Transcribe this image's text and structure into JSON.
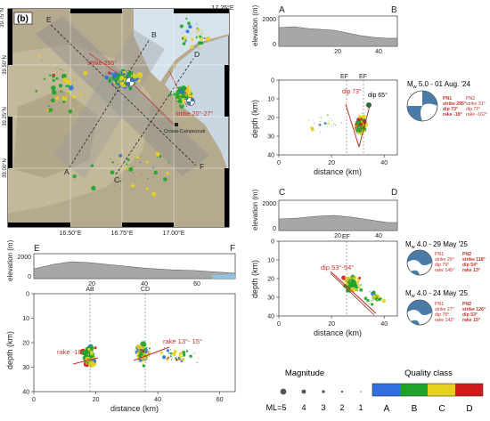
{
  "map": {
    "panel_label": "(b)",
    "lat_ticks": [
      "39.75°N",
      "39.50°N",
      "39.25°N",
      "39.00°N"
    ],
    "lon_ticks": [
      "16.50°E",
      "16.75°E",
      "17.00°E",
      "17.25°E"
    ],
    "profile_letters": [
      "E",
      "B",
      "D",
      "A",
      "C",
      "F"
    ],
    "strike_label_1": "strike 295°",
    "strike_label_2": "strike 20°-27°",
    "town_label": "Crosia-Calopezzati"
  },
  "profile_ab": {
    "left_letter": "A",
    "right_letter": "B",
    "elev_ylabel": "elevation (m)",
    "elev_tick": "2000",
    "elev_tick0": "0",
    "depth_ylabel": "depth (km)",
    "xlabel": "distance (km)",
    "x_ticks": [
      "0",
      "20",
      "40"
    ],
    "depth_ticks": [
      "0",
      "10",
      "20",
      "30",
      "40"
    ],
    "elev_x_ticks": [
      "20",
      "40"
    ],
    "fault_labels": [
      "EF",
      "EF"
    ],
    "dip_labels": [
      "dip 73°",
      "dip 65°"
    ]
  },
  "profile_cd": {
    "left_letter": "C",
    "right_letter": "D",
    "elev_ylabel": "elevation (m)",
    "elev_tick": "2000",
    "elev_tick0": "0",
    "depth_ylabel": "depth (km)",
    "xlabel": "distance (km)",
    "x_ticks": [
      "0",
      "20",
      "40"
    ],
    "depth_ticks": [
      "0",
      "10",
      "20",
      "30",
      "40"
    ],
    "elev_x_ticks": [
      "20",
      "40"
    ],
    "fault_label": "EF",
    "dip_label": "dip 53°-54°"
  },
  "profile_ef": {
    "left_letter": "E",
    "right_letter": "F",
    "elev_ylabel": "elevation (m)",
    "elev_tick": "2000",
    "elev_tick0": "0",
    "depth_ylabel": "depth (km)",
    "xlabel": "distance (km)",
    "x_ticks": [
      "0",
      "20",
      "40",
      "60"
    ],
    "depth_ticks": [
      "0",
      "10",
      "20",
      "30",
      "40"
    ],
    "elev_x_ticks": [
      "20",
      "40",
      "60"
    ],
    "section_labels": [
      "AB",
      "CD"
    ],
    "rake_labels": [
      "rake -18°",
      "rake 13°- 15°"
    ]
  },
  "mechanisms": [
    {
      "title_main": "M",
      "title_sub": "w",
      "title_rest": " 5.0 - 01 Aug. '24",
      "pn1": [
        "PN1",
        "strike 295°",
        "dip 73°",
        "rake -18°"
      ],
      "pn2": [
        "PN2",
        "strike 31°",
        "dip 72°",
        "rake -162°"
      ]
    },
    {
      "title_main": "M",
      "title_sub": "w",
      "title_rest": " 4.0 - 29 May '25",
      "pn1": [
        "PN1",
        "strike 20°",
        "dip 79°",
        "rake 145°"
      ],
      "pn2": [
        "PN2",
        "strike 118°",
        "dip 54°",
        "rake 13°"
      ]
    },
    {
      "title_main": "M",
      "title_sub": "w",
      "title_rest": " 4.0 - 24 May '25",
      "pn1": [
        "PN1",
        "strike 27°",
        "dip 78°",
        "rake 142°"
      ],
      "pn2": [
        "PN2",
        "strike 126°",
        "dip 53°",
        "rake 15°"
      ]
    }
  ],
  "magnitude_legend": {
    "title": "Magnitude",
    "values": [
      "ML=5",
      "4",
      "3",
      "2",
      "1"
    ]
  },
  "quality_legend": {
    "title": "Quality class",
    "classes": [
      "A",
      "B",
      "C",
      "D"
    ],
    "colors": [
      "#2f6fe0",
      "#1ea32a",
      "#e6d21e",
      "#d11a1a"
    ]
  }
}
